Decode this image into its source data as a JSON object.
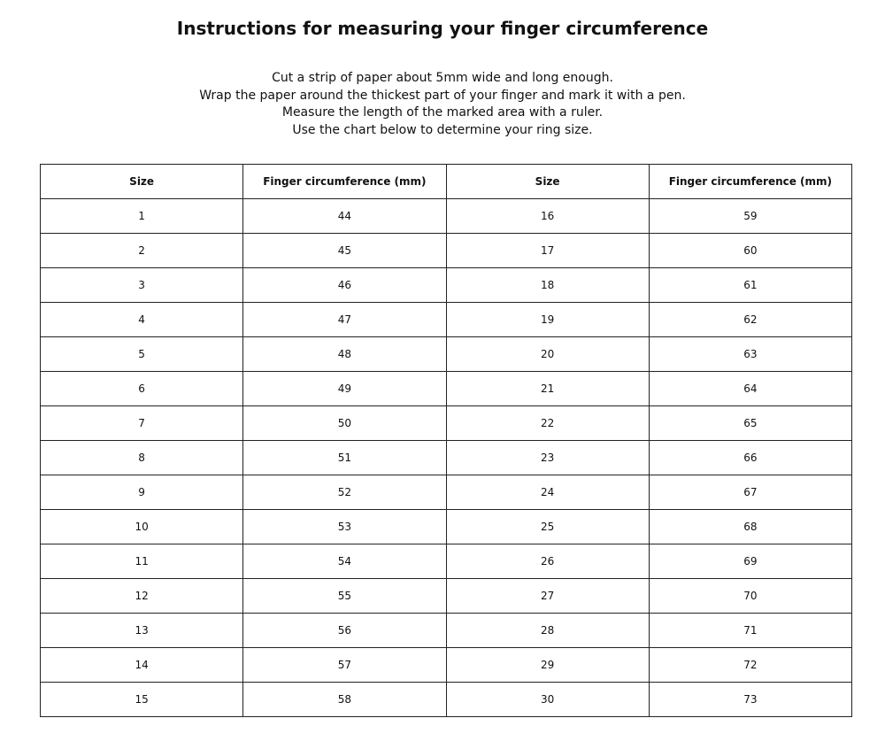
{
  "title": "Instructions for measuring your finger circumference",
  "instructions": [
    "Cut a strip of paper about 5mm wide and long enough.",
    "Wrap the paper around the thickest part of your finger and mark it with a pen.",
    "Measure the length of the marked area with a ruler.",
    "Use the chart below to determine your ring size."
  ],
  "table": {
    "header": [
      "Size",
      "Finger circumference (mm)",
      "Size",
      "Finger circumference (mm)"
    ],
    "rows": [
      [
        1,
        44,
        16,
        59
      ],
      [
        2,
        45,
        17,
        60
      ],
      [
        3,
        46,
        18,
        61
      ],
      [
        4,
        47,
        19,
        62
      ],
      [
        5,
        48,
        20,
        63
      ],
      [
        6,
        49,
        21,
        64
      ],
      [
        7,
        50,
        22,
        65
      ],
      [
        8,
        51,
        23,
        66
      ],
      [
        9,
        52,
        24,
        67
      ],
      [
        10,
        53,
        25,
        68
      ],
      [
        11,
        54,
        26,
        69
      ],
      [
        12,
        55,
        27,
        70
      ],
      [
        13,
        56,
        28,
        71
      ],
      [
        14,
        57,
        29,
        72
      ],
      [
        15,
        58,
        30,
        73
      ]
    ]
  }
}
